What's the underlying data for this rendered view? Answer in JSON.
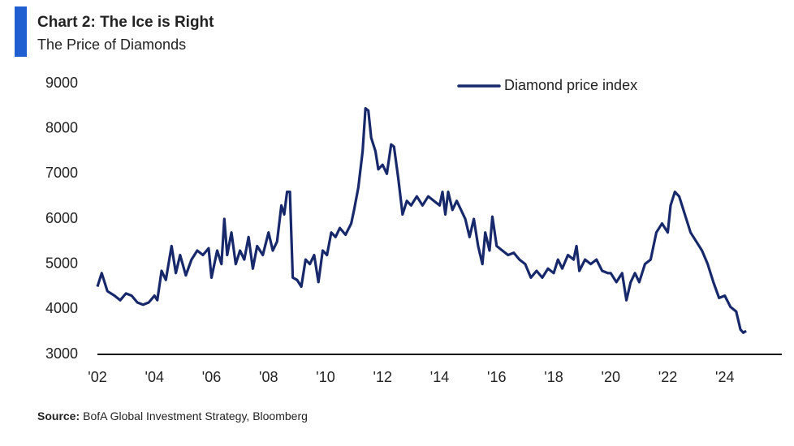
{
  "chart_data": {
    "type": "line",
    "title": "Chart 2: The Ice is Right",
    "subtitle": "The Price of Diamonds",
    "source_label": "Source:",
    "source": "BofA Global Investment Strategy, Bloomberg",
    "legend": "top-right",
    "grid": false,
    "xlim": [
      2002,
      2026
    ],
    "xticks": [
      {
        "value": 2002,
        "label": "'02"
      },
      {
        "value": 2004,
        "label": "'04"
      },
      {
        "value": 2006,
        "label": "'06"
      },
      {
        "value": 2008,
        "label": "'08"
      },
      {
        "value": 2010,
        "label": "'10"
      },
      {
        "value": 2012,
        "label": "'12"
      },
      {
        "value": 2014,
        "label": "'14"
      },
      {
        "value": 2016,
        "label": "'16"
      },
      {
        "value": 2018,
        "label": "'18"
      },
      {
        "value": 2020,
        "label": "'20"
      },
      {
        "value": 2022,
        "label": "'22"
      },
      {
        "value": 2024,
        "label": "'24"
      }
    ],
    "ylim": [
      3000,
      9000
    ],
    "yticks": [
      3000,
      4000,
      5000,
      6000,
      7000,
      8000,
      9000
    ],
    "x": [
      2002.0,
      2002.15,
      2002.35,
      2002.6,
      2002.8,
      2003.0,
      2003.2,
      2003.4,
      2003.6,
      2003.8,
      2004.0,
      2004.1,
      2004.25,
      2004.4,
      2004.6,
      2004.75,
      2004.9,
      2005.1,
      2005.3,
      2005.5,
      2005.7,
      2005.9,
      2006.0,
      2006.2,
      2006.35,
      2006.45,
      2006.55,
      2006.7,
      2006.85,
      2007.0,
      2007.15,
      2007.3,
      2007.45,
      2007.6,
      2007.8,
      2008.0,
      2008.15,
      2008.3,
      2008.45,
      2008.55,
      2008.65,
      2008.75,
      2008.85,
      2009.0,
      2009.15,
      2009.3,
      2009.45,
      2009.6,
      2009.75,
      2009.9,
      2010.05,
      2010.2,
      2010.35,
      2010.5,
      2010.7,
      2010.9,
      2011.0,
      2011.15,
      2011.3,
      2011.4,
      2011.5,
      2011.6,
      2011.75,
      2011.85,
      2012.0,
      2012.15,
      2012.3,
      2012.4,
      2012.55,
      2012.7,
      2012.85,
      2013.0,
      2013.2,
      2013.4,
      2013.6,
      2013.8,
      2014.0,
      2014.1,
      2014.2,
      2014.3,
      2014.45,
      2014.6,
      2014.75,
      2014.9,
      2015.05,
      2015.2,
      2015.35,
      2015.5,
      2015.6,
      2015.75,
      2015.85,
      2016.0,
      2016.2,
      2016.4,
      2016.6,
      2016.8,
      2017.0,
      2017.2,
      2017.4,
      2017.6,
      2017.8,
      2018.0,
      2018.15,
      2018.3,
      2018.5,
      2018.7,
      2018.8,
      2018.9,
      2019.1,
      2019.3,
      2019.5,
      2019.7,
      2019.9,
      2020.0,
      2020.2,
      2020.4,
      2020.55,
      2020.7,
      2020.85,
      2021.0,
      2021.2,
      2021.4,
      2021.6,
      2021.8,
      2022.0,
      2022.1,
      2022.25,
      2022.4,
      2022.6,
      2022.8,
      2023.0,
      2023.2,
      2023.4,
      2023.6,
      2023.8,
      2024.0,
      2024.2,
      2024.4,
      2024.55,
      2024.65,
      2024.75
    ],
    "series": [
      {
        "name": "Diamond price index",
        "color": "#17296b",
        "values": [
          4500,
          4800,
          4400,
          4300,
          4200,
          4350,
          4300,
          4150,
          4100,
          4150,
          4300,
          4200,
          4850,
          4650,
          5400,
          4800,
          5200,
          4750,
          5100,
          5300,
          5200,
          5350,
          4700,
          5300,
          5000,
          6000,
          5200,
          5700,
          5000,
          5300,
          5100,
          5600,
          4900,
          5400,
          5200,
          5700,
          5300,
          5500,
          6300,
          6100,
          6600,
          6600,
          4700,
          4650,
          4500,
          5100,
          5000,
          5200,
          4600,
          5300,
          5200,
          5700,
          5600,
          5800,
          5650,
          5900,
          6200,
          6700,
          7500,
          8450,
          8400,
          7800,
          7500,
          7100,
          7200,
          7000,
          7650,
          7600,
          6900,
          6100,
          6400,
          6300,
          6500,
          6300,
          6500,
          6400,
          6300,
          6600,
          6100,
          6600,
          6200,
          6400,
          6200,
          6000,
          5600,
          6000,
          5400,
          5000,
          5700,
          5300,
          6050,
          5400,
          5300,
          5200,
          5250,
          5100,
          5000,
          4700,
          4850,
          4700,
          4900,
          4800,
          5100,
          4900,
          5200,
          5100,
          5400,
          4850,
          5100,
          5000,
          5100,
          4850,
          4800,
          4800,
          4600,
          4800,
          4200,
          4600,
          4800,
          4600,
          5000,
          5100,
          5700,
          5900,
          5700,
          6300,
          6600,
          6500,
          6100,
          5700,
          5500,
          5300,
          5000,
          4600,
          4250,
          4300,
          4050,
          3950,
          3550,
          3480,
          3520
        ]
      }
    ]
  }
}
